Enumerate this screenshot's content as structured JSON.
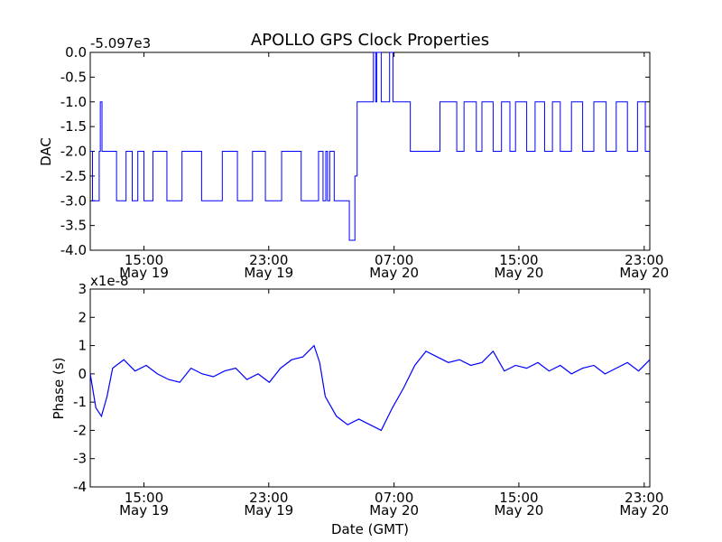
{
  "title": "APOLLO GPS Clock Properties",
  "colors": {
    "line": "#0000ff",
    "axes": "#000000",
    "background": "#ffffff"
  },
  "chart_data": [
    {
      "type": "line",
      "title": "APOLLO GPS Clock Properties",
      "ylabel": "DAC",
      "xlabel": "",
      "offset_label": "-5.097e3",
      "ylim": [
        -4.0,
        0.0
      ],
      "yticks": [
        "0.0",
        "-0.5",
        "-1.0",
        "-1.5",
        "-2.0",
        "-2.5",
        "-3.0",
        "-3.5",
        "-4.0"
      ],
      "xlim": [
        0.0,
        1.0
      ],
      "xticks": [
        {
          "time": "15:00",
          "date": "May 19"
        },
        {
          "time": "23:00",
          "date": "May 19"
        },
        {
          "time": "07:00",
          "date": "May 20"
        },
        {
          "time": "15:00",
          "date": "May 20"
        },
        {
          "time": "23:00",
          "date": "May 20"
        }
      ],
      "grid": false,
      "series": [
        {
          "values": [
            [
              0.0,
              -2.0
            ],
            [
              0.004,
              -3.0
            ],
            [
              0.016,
              -2.0
            ],
            [
              0.018,
              -1.0
            ],
            [
              0.021,
              -2.0
            ],
            [
              0.047,
              -3.0
            ],
            [
              0.064,
              -2.0
            ],
            [
              0.075,
              -3.0
            ],
            [
              0.085,
              -2.0
            ],
            [
              0.096,
              -3.0
            ],
            [
              0.112,
              -2.0
            ],
            [
              0.137,
              -3.0
            ],
            [
              0.164,
              -2.0
            ],
            [
              0.199,
              -3.0
            ],
            [
              0.236,
              -2.0
            ],
            [
              0.263,
              -3.0
            ],
            [
              0.29,
              -2.0
            ],
            [
              0.313,
              -3.0
            ],
            [
              0.342,
              -2.0
            ],
            [
              0.377,
              -3.0
            ],
            [
              0.408,
              -2.0
            ],
            [
              0.416,
              -3.0
            ],
            [
              0.421,
              -2.0
            ],
            [
              0.424,
              -3.0
            ],
            [
              0.426,
              -3.0
            ],
            [
              0.428,
              -2.0
            ],
            [
              0.436,
              -3.0
            ],
            [
              0.457,
              -3.0
            ],
            [
              0.463,
              -3.8
            ],
            [
              0.473,
              -2.5
            ],
            [
              0.477,
              -1.0
            ],
            [
              0.5,
              -1.0
            ],
            [
              0.506,
              0.0
            ],
            [
              0.51,
              -1.0
            ],
            [
              0.512,
              0.0
            ],
            [
              0.52,
              -1.0
            ],
            [
              0.535,
              0.0
            ],
            [
              0.541,
              -1.0
            ],
            [
              0.568,
              -1.0
            ],
            [
              0.572,
              -2.0
            ],
            [
              0.612,
              -2.0
            ],
            [
              0.625,
              -1.0
            ],
            [
              0.655,
              -2.0
            ],
            [
              0.668,
              -1.0
            ],
            [
              0.69,
              -2.0
            ],
            [
              0.7,
              -1.0
            ],
            [
              0.72,
              -2.0
            ],
            [
              0.735,
              -1.0
            ],
            [
              0.75,
              -2.0
            ],
            [
              0.76,
              -1.0
            ],
            [
              0.78,
              -2.0
            ],
            [
              0.795,
              -1.0
            ],
            [
              0.812,
              -2.0
            ],
            [
              0.826,
              -1.0
            ],
            [
              0.84,
              -2.0
            ],
            [
              0.86,
              -1.0
            ],
            [
              0.88,
              -2.0
            ],
            [
              0.9,
              -1.0
            ],
            [
              0.922,
              -2.0
            ],
            [
              0.94,
              -1.0
            ],
            [
              0.96,
              -2.0
            ],
            [
              0.978,
              -1.0
            ],
            [
              0.992,
              -2.0
            ],
            [
              1.0,
              -2.0
            ]
          ]
        }
      ]
    },
    {
      "type": "line",
      "title": "",
      "ylabel": "Phase (s)",
      "xlabel": "Date (GMT)",
      "offset_label": "x1e-8",
      "ylim": [
        -4,
        3
      ],
      "yticks": [
        "3",
        "2",
        "1",
        "0",
        "-1",
        "-2",
        "-3",
        "-4"
      ],
      "xlim": [
        0.0,
        1.0
      ],
      "xticks": [
        {
          "time": "15:00",
          "date": "May 19"
        },
        {
          "time": "23:00",
          "date": "May 19"
        },
        {
          "time": "07:00",
          "date": "May 20"
        },
        {
          "time": "15:00",
          "date": "May 20"
        },
        {
          "time": "23:00",
          "date": "May 20"
        }
      ],
      "grid": false,
      "series": [
        {
          "values": [
            [
              0.0,
              0.0
            ],
            [
              0.01,
              -1.2
            ],
            [
              0.02,
              -1.5
            ],
            [
              0.03,
              -0.8
            ],
            [
              0.04,
              0.2
            ],
            [
              0.06,
              0.5
            ],
            [
              0.08,
              0.1
            ],
            [
              0.1,
              0.3
            ],
            [
              0.12,
              0.0
            ],
            [
              0.14,
              -0.2
            ],
            [
              0.16,
              -0.3
            ],
            [
              0.18,
              0.2
            ],
            [
              0.2,
              0.0
            ],
            [
              0.22,
              -0.1
            ],
            [
              0.24,
              0.1
            ],
            [
              0.26,
              0.2
            ],
            [
              0.28,
              -0.2
            ],
            [
              0.3,
              0.0
            ],
            [
              0.32,
              -0.3
            ],
            [
              0.34,
              0.2
            ],
            [
              0.36,
              0.5
            ],
            [
              0.38,
              0.6
            ],
            [
              0.4,
              1.0
            ],
            [
              0.41,
              0.4
            ],
            [
              0.42,
              -0.8
            ],
            [
              0.44,
              -1.5
            ],
            [
              0.46,
              -1.8
            ],
            [
              0.48,
              -1.6
            ],
            [
              0.5,
              -1.8
            ],
            [
              0.52,
              -2.0
            ],
            [
              0.54,
              -1.2
            ],
            [
              0.56,
              -0.5
            ],
            [
              0.58,
              0.3
            ],
            [
              0.6,
              0.8
            ],
            [
              0.62,
              0.6
            ],
            [
              0.64,
              0.4
            ],
            [
              0.66,
              0.5
            ],
            [
              0.68,
              0.3
            ],
            [
              0.7,
              0.4
            ],
            [
              0.72,
              0.8
            ],
            [
              0.74,
              0.1
            ],
            [
              0.76,
              0.3
            ],
            [
              0.78,
              0.2
            ],
            [
              0.8,
              0.4
            ],
            [
              0.82,
              0.1
            ],
            [
              0.84,
              0.3
            ],
            [
              0.86,
              0.0
            ],
            [
              0.88,
              0.2
            ],
            [
              0.9,
              0.3
            ],
            [
              0.92,
              0.0
            ],
            [
              0.94,
              0.2
            ],
            [
              0.96,
              0.4
            ],
            [
              0.98,
              0.1
            ],
            [
              1.0,
              0.5
            ]
          ]
        }
      ]
    }
  ]
}
